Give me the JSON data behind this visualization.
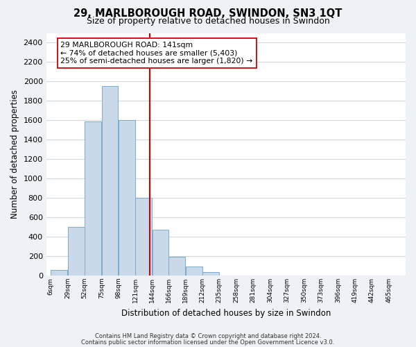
{
  "title": "29, MARLBOROUGH ROAD, SWINDON, SN3 1QT",
  "subtitle": "Size of property relative to detached houses in Swindon",
  "xlabel": "Distribution of detached houses by size in Swindon",
  "ylabel": "Number of detached properties",
  "bin_edges": [
    6,
    29,
    52,
    75,
    98,
    121,
    144,
    166,
    189,
    212,
    235,
    258,
    281,
    304,
    327,
    350,
    373,
    396,
    419,
    442,
    465,
    488
  ],
  "bar_heights": [
    55,
    500,
    1585,
    1950,
    1600,
    800,
    470,
    190,
    95,
    35,
    0,
    0,
    0,
    0,
    0,
    0,
    0,
    0,
    0,
    0,
    0
  ],
  "bar_color": "#c9d9ea",
  "bar_edgecolor": "#7aaacb",
  "vline_x": 141,
  "vline_color": "#cc0000",
  "annotation_lines": [
    "29 MARLBOROUGH ROAD: 141sqm",
    "← 74% of detached houses are smaller (5,403)",
    "25% of semi-detached houses are larger (1,820) →"
  ],
  "yticks": [
    0,
    200,
    400,
    600,
    800,
    1000,
    1200,
    1400,
    1600,
    1800,
    2000,
    2200,
    2400
  ],
  "xtick_labels": [
    "6sqm",
    "29sqm",
    "52sqm",
    "75sqm",
    "98sqm",
    "121sqm",
    "144sqm",
    "166sqm",
    "189sqm",
    "212sqm",
    "235sqm",
    "258sqm",
    "281sqm",
    "304sqm",
    "327sqm",
    "350sqm",
    "373sqm",
    "396sqm",
    "419sqm",
    "442sqm",
    "465sqm"
  ],
  "xtick_positions": [
    6,
    29,
    52,
    75,
    98,
    121,
    144,
    166,
    189,
    212,
    235,
    258,
    281,
    304,
    327,
    350,
    373,
    396,
    419,
    442,
    465
  ],
  "ylim": [
    0,
    2500
  ],
  "xlim": [
    0,
    488
  ],
  "footer_line1": "Contains HM Land Registry data © Crown copyright and database right 2024.",
  "footer_line2": "Contains public sector information licensed under the Open Government Licence v3.0.",
  "background_color": "#eef2f6",
  "plot_bg_color": "#ffffff",
  "grid_color": "#d0d8e0"
}
